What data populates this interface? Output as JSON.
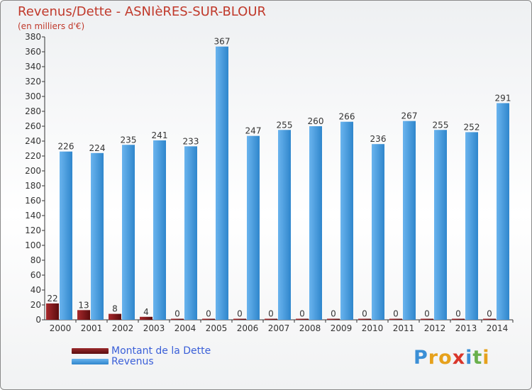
{
  "title": "Revenus/Dette - ASNIèRES-SUR-BLOUR",
  "subtitle": "(en milliers d'€)",
  "logo_text": "Proxiti",
  "colors": {
    "dette": "#7a1416",
    "revenus": "#4fa3e3",
    "title": "#c0392b",
    "legend_text": "#3a5fd8"
  },
  "chart_data": {
    "type": "bar",
    "title": "Revenus/Dette - ASNIèRES-SUR-BLOUR",
    "ylabel": "(en milliers d'€)",
    "categories": [
      "2000",
      "2001",
      "2002",
      "2003",
      "2004",
      "2005",
      "2006",
      "2007",
      "2008",
      "2009",
      "2010",
      "2011",
      "2012",
      "2013",
      "2014"
    ],
    "series": [
      {
        "name": "Montant de la Dette",
        "values": [
          22,
          13,
          8,
          4,
          0,
          0,
          0,
          0,
          0,
          0,
          0,
          0,
          0,
          0,
          0
        ]
      },
      {
        "name": "Revenus",
        "values": [
          226,
          224,
          235,
          241,
          233,
          367,
          247,
          255,
          260,
          266,
          236,
          267,
          255,
          252,
          291
        ]
      }
    ],
    "ylim": [
      0,
      380
    ],
    "yticks": [
      0,
      20,
      40,
      60,
      80,
      100,
      120,
      140,
      160,
      180,
      200,
      220,
      240,
      260,
      280,
      300,
      320,
      340,
      360,
      380
    ],
    "grid": false,
    "legend_position": "bottom-left"
  }
}
